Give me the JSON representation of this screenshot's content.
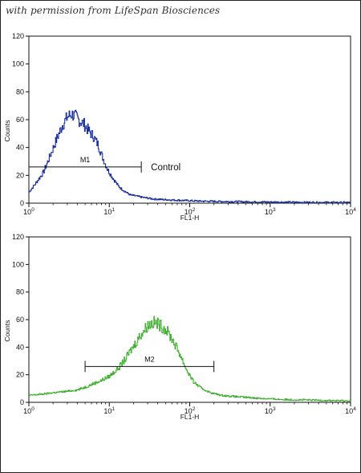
{
  "credit": "with permission from LifeSpan Biosciences",
  "chart_data": [
    {
      "type": "line",
      "color": "#1a2f9c",
      "xlabel": "FL1-H",
      "ylabel": "Counts",
      "xscale": "log",
      "xlim": [
        1,
        10000
      ],
      "ylim": [
        0,
        120
      ],
      "yticks": [
        0,
        20,
        40,
        60,
        80,
        100,
        120
      ],
      "xticks": [
        {
          "base": "10",
          "exp": "0"
        },
        {
          "base": "10",
          "exp": "1"
        },
        {
          "base": "10",
          "exp": "2"
        },
        {
          "base": "10",
          "exp": "3"
        },
        {
          "base": "10",
          "exp": "4"
        }
      ],
      "gate": {
        "label": "M1",
        "x_start": 1,
        "x_end": 25,
        "y": 26
      },
      "annotation": "Control",
      "x": [
        1,
        1.2,
        1.5,
        1.8,
        2.2,
        2.6,
        3.0,
        3.4,
        3.8,
        4.3,
        4.8,
        5.5,
        6.3,
        7.2,
        8.3,
        9.5,
        11,
        13,
        15,
        18,
        22,
        27,
        35,
        50,
        80,
        130,
        250,
        500,
        1000,
        2500,
        10000
      ],
      "values": [
        8,
        14,
        22,
        33,
        46,
        56,
        62,
        64,
        62,
        59,
        57,
        52,
        48,
        42,
        32,
        24,
        18,
        12,
        9,
        6,
        5,
        4,
        3,
        2.5,
        2,
        1.5,
        1.2,
        1,
        0.8,
        0.6,
        0.5
      ]
    },
    {
      "type": "line",
      "color": "#44b035",
      "xlabel": "FL1-H",
      "ylabel": "Counts",
      "xscale": "log",
      "xlim": [
        1,
        10000
      ],
      "ylim": [
        0,
        120
      ],
      "yticks": [
        0,
        20,
        40,
        60,
        80,
        100,
        120
      ],
      "xticks": [
        {
          "base": "10",
          "exp": "0"
        },
        {
          "base": "10",
          "exp": "1"
        },
        {
          "base": "10",
          "exp": "2"
        },
        {
          "base": "10",
          "exp": "3"
        },
        {
          "base": "10",
          "exp": "4"
        }
      ],
      "gate": {
        "label": "M2",
        "x_start": 5,
        "x_end": 200,
        "y": 26
      },
      "x": [
        1,
        1.5,
        2,
        3,
        4,
        5,
        6,
        8,
        10,
        13,
        16,
        20,
        25,
        30,
        35,
        40,
        50,
        60,
        75,
        90,
        110,
        140,
        180,
        250,
        400,
        700,
        1500,
        4000,
        10000
      ],
      "values": [
        5,
        6,
        7,
        8,
        9,
        11,
        13,
        16,
        19,
        25,
        32,
        41,
        50,
        56,
        58,
        57,
        53,
        46,
        35,
        24,
        15,
        10,
        7,
        5,
        4,
        3,
        2,
        1.5,
        1
      ]
    }
  ]
}
